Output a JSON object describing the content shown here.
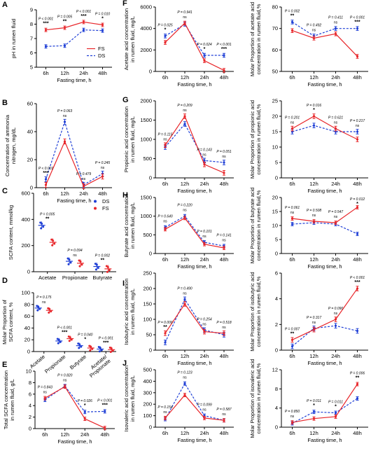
{
  "colors": {
    "FS": "#e8262a",
    "DS": "#1f3fd6"
  },
  "legend": {
    "FS": "FS",
    "DS": "DS"
  },
  "chart_data": [
    {
      "letter": "A",
      "type": "line",
      "x": [
        "6h",
        "12h",
        "24h",
        "48h"
      ],
      "xlabel": "Fasting time, h",
      "ylabel": "pH in rumen fluid",
      "ylim": [
        5,
        9
      ],
      "yticks": [
        5,
        6,
        7,
        8,
        9
      ],
      "series": [
        {
          "name": "FS",
          "values": [
            7.6,
            7.75,
            8.15,
            7.95
          ]
        },
        {
          "name": "DS",
          "values": [
            6.45,
            6.5,
            7.6,
            7.55
          ]
        }
      ],
      "annotations": [
        {
          "p": "P < 0.001",
          "sig": "***"
        },
        {
          "p": "P = 0.005",
          "sig": "**"
        },
        {
          "p": "P < 0.001",
          "sig": "***"
        },
        {
          "p": "P = 0.010",
          "sig": "*"
        }
      ],
      "legend": true
    },
    {
      "letter": "B",
      "type": "line",
      "x": [
        "6h",
        "12h",
        "24h",
        "48h"
      ],
      "xlabel": "Fasting time, h",
      "ylabel": "Concentration of ammonia nitrogen, mg/dL",
      "ylim": [
        0,
        60
      ],
      "yticks": [
        0,
        20,
        40,
        60
      ],
      "series": [
        {
          "name": "FS",
          "values": [
            2,
            33,
            1,
            8
          ]
        },
        {
          "name": "DS",
          "values": [
            6,
            47,
            2,
            10
          ]
        }
      ],
      "annotations": [
        {
          "p": "P < 0.001",
          "sig": "***"
        },
        {
          "p": "P = 0.063",
          "sig": "ns"
        },
        {
          "p": "P = 0.479",
          "sig": "ns"
        },
        {
          "p": "P = 0.245",
          "sig": "ns"
        }
      ]
    },
    {
      "letter": "C",
      "type": "scatter",
      "categories": [
        "Acetate",
        "Propionate",
        "Butyrate"
      ],
      "ylabel": "SCFA content, mmol/kg",
      "ylim": [
        0,
        600
      ],
      "yticks": [
        0,
        200,
        400,
        600
      ],
      "series": [
        {
          "name": "DS",
          "values": [
            355,
            80,
            40
          ]
        },
        {
          "name": "FS",
          "values": [
            225,
            65,
            22
          ]
        }
      ],
      "annotations": [
        {
          "p": "P = 0.005",
          "sig": "**"
        },
        {
          "p": "P = 0.094",
          "sig": "ns"
        },
        {
          "p": "P = 0.002",
          "sig": "**"
        }
      ],
      "legend": true
    },
    {
      "letter": "D",
      "type": "scatter",
      "categories": [
        "Acetate",
        "Propionate",
        "Butyrate",
        "Acetate/ Propionate"
      ],
      "ylabel": "Molar Proportion of SCFA content, %",
      "ylim": [
        0,
        100
      ],
      "yticks": [
        0,
        20,
        40,
        60,
        80,
        100
      ],
      "series": [
        {
          "name": "DS",
          "values": [
            74,
            18,
            10,
            4.2
          ]
        },
        {
          "name": "FS",
          "values": [
            70,
            22,
            6,
            3.2
          ]
        }
      ],
      "annotations": [
        {
          "p": "P = 0.175",
          "sig": "ns"
        },
        {
          "p": "P < 0.001",
          "sig": "***"
        },
        {
          "p": "P = 0.040",
          "sig": "*"
        },
        {
          "p": "P < 0.001",
          "sig": "***"
        }
      ]
    },
    {
      "letter": "E",
      "type": "line",
      "x": [
        "6h",
        "12h",
        "24h",
        "48h"
      ],
      "xlabel": "Fasting time, h",
      "ylabel": "Total SCFA concentration in rumen fluid, g/L",
      "ylim": [
        0,
        10
      ],
      "yticks": [
        0,
        2,
        4,
        6,
        8,
        10
      ],
      "series": [
        {
          "name": "FS",
          "values": [
            5.3,
            7.3,
            1.7,
            0.1
          ]
        },
        {
          "name": "DS",
          "values": [
            5.0,
            7.4,
            2.9,
            3.0
          ]
        }
      ],
      "annotations": [
        {
          "p": "P = 0.843",
          "sig": "ns"
        },
        {
          "p": "P = 0.820",
          "sig": "ns"
        },
        {
          "p": "P = 0.026",
          "sig": "*"
        },
        {
          "p": "P < 0.001",
          "sig": "***"
        }
      ]
    },
    {
      "letter": "F",
      "type": "line",
      "x": [
        "6h",
        "12h",
        "24h",
        "48h"
      ],
      "xlabel": "Fasting time, h",
      "ylabel": "Acetate acid concentration in rumen fluid, mg/L",
      "ylim": [
        0,
        6000
      ],
      "yticks": [
        0,
        2000,
        4000,
        6000
      ],
      "series": [
        {
          "name": "FS",
          "values": [
            2700,
            4500,
            1000,
            100
          ]
        },
        {
          "name": "DS",
          "values": [
            3300,
            4400,
            1500,
            1500
          ]
        }
      ],
      "annotations": [
        {
          "p": "P = 0.025",
          "sig": "*"
        },
        {
          "p": "P = 0.941",
          "sig": "ns"
        },
        {
          "p": "P = 0.024",
          "sig": "*"
        },
        {
          "p": "P < 0.001",
          "sig": "***"
        }
      ]
    },
    {
      "letter": "",
      "type": "line",
      "x": [
        "6h",
        "12h",
        "24h",
        "48h"
      ],
      "xlabel": "Fasting time, h",
      "ylabel": "Molar Proportion of acetate acid concentration in rumen fluid,%",
      "ylim": [
        50,
        80
      ],
      "yticks": [
        50,
        60,
        70,
        80
      ],
      "series": [
        {
          "name": "FS",
          "values": [
            69,
            65.5,
            67.5,
            57
          ]
        },
        {
          "name": "DS",
          "values": [
            73,
            66.5,
            70,
            70
          ]
        }
      ],
      "annotations": [
        {
          "p": "P = 0.002",
          "sig": "**"
        },
        {
          "p": "P = 0.492",
          "sig": "ns"
        },
        {
          "p": "P = 0.411",
          "sig": "ns"
        },
        {
          "p": "P < 0.001",
          "sig": "***"
        }
      ]
    },
    {
      "letter": "G",
      "type": "line",
      "x": [
        "6h",
        "12h",
        "24h",
        "48h"
      ],
      "xlabel": "Fasting time, h",
      "ylabel": "Propionic acid concentration in rumen fluid, mg/L",
      "ylim": [
        0,
        2000
      ],
      "yticks": [
        0,
        500,
        1000,
        1500,
        2000
      ],
      "series": [
        {
          "name": "FS",
          "values": [
            850,
            1600,
            350,
            130
          ]
        },
        {
          "name": "DS",
          "values": [
            800,
            1400,
            450,
            400
          ]
        }
      ],
      "annotations": [
        {
          "p": "P = 0.115",
          "sig": "ns"
        },
        {
          "p": "P = 0.209",
          "sig": "ns"
        },
        {
          "p": "P = 0.143",
          "sig": "ns"
        },
        {
          "p": "P = 0.051",
          "sig": "ns"
        }
      ]
    },
    {
      "letter": "",
      "type": "line",
      "x": [
        "6h",
        "12h",
        "24h",
        "48h"
      ],
      "xlabel": "Fasting time, h",
      "ylabel": "Molar Proportion of propionic acid concentration in rumen fluid,%",
      "ylim": [
        0,
        25
      ],
      "yticks": [
        0,
        5,
        10,
        15,
        20,
        25
      ],
      "series": [
        {
          "name": "FS",
          "values": [
            16,
            20,
            16,
            12.5
          ]
        },
        {
          "name": "DS",
          "values": [
            15,
            17,
            15,
            15
          ]
        }
      ],
      "annotations": [
        {
          "p": "P = 0.201",
          "sig": "ns"
        },
        {
          "p": "P = 0.016",
          "sig": "*"
        },
        {
          "p": "P = 0.621",
          "sig": "ns"
        },
        {
          "p": "P = 0.217",
          "sig": "ns"
        }
      ]
    },
    {
      "letter": "H",
      "type": "line",
      "x": [
        "6h",
        "12h",
        "24h",
        "48h"
      ],
      "xlabel": "Fasting time, h",
      "ylabel": "Butyrate acid concentration in rumen fluid, mg/L",
      "ylim": [
        0,
        1500
      ],
      "yticks": [
        0,
        500,
        1000,
        1500
      ],
      "series": [
        {
          "name": "FS",
          "values": [
            650,
            950,
            250,
            150
          ]
        },
        {
          "name": "DS",
          "values": [
            700,
            1000,
            300,
            200
          ]
        }
      ],
      "annotations": [
        {
          "p": "P = 0.640",
          "sig": "ns"
        },
        {
          "p": "P = 0.220",
          "sig": "ns"
        },
        {
          "p": "P = 0.101",
          "sig": "ns"
        },
        {
          "p": "P = 0.141",
          "sig": "ns"
        }
      ]
    },
    {
      "letter": "",
      "type": "line",
      "x": [
        "6h",
        "12h",
        "24h",
        "48h"
      ],
      "xlabel": "Fasting time, h",
      "ylabel": "Molar Proportion of butyrate acid concentration in rumen fluid,%",
      "ylim": [
        0,
        20
      ],
      "yticks": [
        0,
        5,
        10,
        15,
        20
      ],
      "series": [
        {
          "name": "FS",
          "values": [
            12.5,
            11.5,
            11,
            16.5
          ]
        },
        {
          "name": "DS",
          "values": [
            10.5,
            11,
            10.5,
            7
          ]
        }
      ],
      "annotations": [
        {
          "p": "P = 0.061",
          "sig": "ns"
        },
        {
          "p": "P = 0.508",
          "sig": "ns"
        },
        {
          "p": "P = 0.547",
          "sig": "ns"
        },
        {
          "p": "P = 0.012",
          "sig": "*"
        }
      ]
    },
    {
      "letter": "I",
      "type": "line",
      "x": [
        "6h",
        "12h",
        "24h",
        "48h"
      ],
      "xlabel": "Fasting time, h",
      "ylabel": "Isobutyric acid concentration in rumen fluid, mg/L",
      "ylim": [
        0,
        250
      ],
      "yticks": [
        0,
        50,
        100,
        150,
        200,
        250
      ],
      "series": [
        {
          "name": "FS",
          "values": [
            55,
            150,
            60,
            55
          ]
        },
        {
          "name": "DS",
          "values": [
            25,
            165,
            65,
            50
          ]
        }
      ],
      "annotations": [
        {
          "p": "P = 0.006",
          "sig": "**"
        },
        {
          "p": "P = 0.490",
          "sig": "ns"
        },
        {
          "p": "P = 0.254",
          "sig": "ns"
        },
        {
          "p": "P = 0.518",
          "sig": "ns"
        }
      ]
    },
    {
      "letter": "",
      "type": "line",
      "x": [
        "6h",
        "12h",
        "24h",
        "48h"
      ],
      "xlabel": "Fasting time, h",
      "ylabel": "Molar Proportion of isobutyric acid concentration in rumen fluid,%",
      "ylim": [
        0,
        6
      ],
      "yticks": [
        0,
        2,
        4,
        6
      ],
      "series": [
        {
          "name": "FS",
          "values": [
            0.8,
            1.6,
            2.4,
            4.8
          ]
        },
        {
          "name": "DS",
          "values": [
            0.3,
            1.7,
            1.9,
            1.5
          ]
        }
      ],
      "annotations": [
        {
          "p": "P = 0.007",
          "sig": "**"
        },
        {
          "p": "P = 0.317",
          "sig": "ns"
        },
        {
          "p": "P = 0.090",
          "sig": "ns"
        },
        {
          "p": "P < 0.001",
          "sig": "***"
        }
      ]
    },
    {
      "letter": "J",
      "type": "line",
      "x": [
        "6h",
        "12h",
        "24h",
        "48h"
      ],
      "xlabel": "Fasting time, h",
      "ylabel": "Isovaleric acid concentration in rumen fluid, mg/L",
      "ylim": [
        0,
        500
      ],
      "yticks": [
        0,
        100,
        200,
        300,
        400,
        500
      ],
      "series": [
        {
          "name": "FS",
          "values": [
            80,
            280,
            80,
            60
          ]
        },
        {
          "name": "DS",
          "values": [
            70,
            380,
            100,
            60
          ]
        }
      ],
      "annotations": [
        {
          "p": "P = 0.154",
          "sig": "ns"
        },
        {
          "p": "P = 0.123",
          "sig": "ns"
        },
        {
          "p": "P = 0.099",
          "sig": "ns"
        },
        {
          "p": "P = 0.587",
          "sig": "ns"
        }
      ]
    },
    {
      "letter": "",
      "type": "line",
      "x": [
        "6h",
        "12h",
        "24h",
        "48h"
      ],
      "xlabel": "Fasting time, h",
      "ylabel": "Molar Proportion of isovaleric acid concentration in rumen fluid,%",
      "ylim": [
        0,
        12
      ],
      "yticks": [
        0,
        4,
        8,
        12
      ],
      "series": [
        {
          "name": "FS",
          "values": [
            1,
            1.8,
            2.2,
            9
          ]
        },
        {
          "name": "DS",
          "values": [
            0.8,
            3.2,
            3,
            6
          ]
        }
      ],
      "annotations": [
        {
          "p": "P = 0.850",
          "sig": "ns"
        },
        {
          "p": "P = 0.011",
          "sig": "*"
        },
        {
          "p": "P = 0.011",
          "sig": "*"
        },
        {
          "p": "P = 0.006",
          "sig": "**"
        }
      ]
    }
  ]
}
